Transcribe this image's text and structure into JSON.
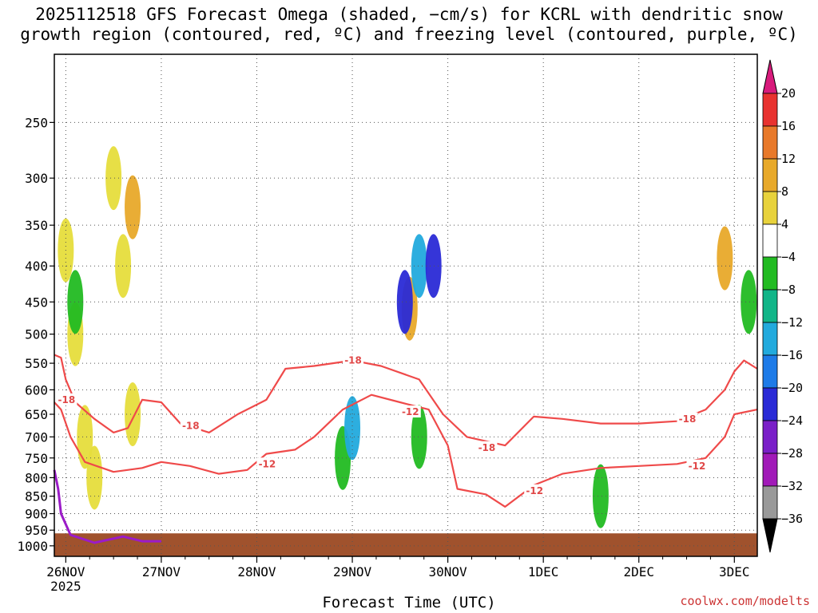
{
  "chart_data": {
    "type": "heatmap",
    "title": "2025112518 GFS Forecast Omega (shaded, −cm/s) for KCRL with dendritic snow\ngrowth region (contoured, red, ºC) and freezing level (contoured, purple, ºC)",
    "xlabel": "Forecast Time (UTC)",
    "ylabel": "",
    "credit": "coolwx.com/modelts",
    "x_ticks": [
      {
        "label": "26NOV",
        "sublabel": "2025",
        "t": 0.0
      },
      {
        "label": "27NOV",
        "sublabel": "",
        "t": 1.0
      },
      {
        "label": "28NOV",
        "sublabel": "",
        "t": 2.0
      },
      {
        "label": "29NOV",
        "sublabel": "",
        "t": 3.0
      },
      {
        "label": "30NOV",
        "sublabel": "",
        "t": 4.0
      },
      {
        "label": "1DEC",
        "sublabel": "",
        "t": 5.0
      },
      {
        "label": "2DEC",
        "sublabel": "",
        "t": 6.0
      },
      {
        "label": "3DEC",
        "sublabel": "",
        "t": 7.0
      }
    ],
    "xlim": [
      -0.12,
      7.24
    ],
    "y_ticks": [
      250,
      300,
      350,
      400,
      450,
      500,
      550,
      600,
      650,
      700,
      750,
      800,
      850,
      900,
      950,
      1000
    ],
    "ylim": [
      1035,
      200
    ],
    "yscale": "log",
    "colorbar": {
      "ticks": [
        "20",
        "16",
        "12",
        "8",
        "4",
        "−4",
        "−8",
        "−12",
        "−16",
        "−20",
        "−24",
        "−28",
        "−32",
        "−36"
      ],
      "colors": [
        "#d81b7c",
        "#e8322f",
        "#e8792a",
        "#e8a92a",
        "#e8d23c",
        "#ffffff",
        "#22bb22",
        "#11b588",
        "#22aadd",
        "#1e7be8",
        "#2a2ad6",
        "#7a1fc8",
        "#a11ab8",
        "#999999",
        "#000000"
      ]
    },
    "shaded_regions": [
      {
        "level": "4",
        "color": "#e6dd3c",
        "cells": [
          [
            0.0,
            380
          ],
          [
            0.1,
            500
          ],
          [
            0.2,
            700
          ],
          [
            0.3,
            800
          ],
          [
            0.5,
            300
          ],
          [
            0.6,
            400
          ],
          [
            0.7,
            650
          ]
        ]
      },
      {
        "level": "8",
        "color": "#e8a92a",
        "cells": [
          [
            0.7,
            330
          ],
          [
            3.6,
            460
          ],
          [
            6.9,
            390
          ]
        ]
      },
      {
        "level": "-4",
        "color": "#22bb22",
        "cells": [
          [
            0.1,
            450
          ],
          [
            2.9,
            750
          ],
          [
            3.7,
            700
          ],
          [
            5.6,
            850
          ],
          [
            7.15,
            450
          ]
        ]
      },
      {
        "level": "-12",
        "color": "#22aadd",
        "cells": [
          [
            3.0,
            680
          ],
          [
            3.7,
            400
          ]
        ]
      },
      {
        "level": "-20",
        "color": "#2a2ad6",
        "cells": [
          [
            3.55,
            450
          ],
          [
            3.85,
            400
          ]
        ]
      }
    ],
    "contours": [
      {
        "name": "-18",
        "color": "#ef4a4a",
        "label_positions": [
          [
            0.0,
            620
          ],
          [
            1.3,
            675
          ],
          [
            3.0,
            545
          ],
          [
            4.4,
            725
          ],
          [
            6.5,
            660
          ]
        ],
        "points": [
          [
            -0.12,
            535
          ],
          [
            -0.05,
            540
          ],
          [
            0.0,
            580
          ],
          [
            0.1,
            625
          ],
          [
            0.3,
            660
          ],
          [
            0.5,
            690
          ],
          [
            0.65,
            680
          ],
          [
            0.8,
            620
          ],
          [
            1.0,
            625
          ],
          [
            1.2,
            670
          ],
          [
            1.5,
            690
          ],
          [
            1.8,
            650
          ],
          [
            2.1,
            620
          ],
          [
            2.3,
            560
          ],
          [
            2.6,
            555
          ],
          [
            3.0,
            545
          ],
          [
            3.3,
            555
          ],
          [
            3.7,
            580
          ],
          [
            3.95,
            650
          ],
          [
            4.2,
            700
          ],
          [
            4.6,
            720
          ],
          [
            4.9,
            655
          ],
          [
            5.2,
            660
          ],
          [
            5.6,
            670
          ],
          [
            6.0,
            670
          ],
          [
            6.4,
            665
          ],
          [
            6.7,
            640
          ],
          [
            6.9,
            600
          ],
          [
            7.0,
            565
          ],
          [
            7.1,
            545
          ],
          [
            7.24,
            560
          ]
        ]
      },
      {
        "name": "-12",
        "color": "#ef4a4a",
        "label_positions": [
          [
            2.1,
            765
          ],
          [
            3.6,
            645
          ],
          [
            4.9,
            835
          ],
          [
            6.6,
            770
          ]
        ],
        "points": [
          [
            -0.12,
            625
          ],
          [
            -0.05,
            640
          ],
          [
            0.05,
            700
          ],
          [
            0.2,
            760
          ],
          [
            0.5,
            785
          ],
          [
            0.8,
            775
          ],
          [
            1.0,
            760
          ],
          [
            1.3,
            770
          ],
          [
            1.6,
            790
          ],
          [
            1.9,
            780
          ],
          [
            2.1,
            740
          ],
          [
            2.4,
            730
          ],
          [
            2.6,
            700
          ],
          [
            2.9,
            640
          ],
          [
            3.2,
            610
          ],
          [
            3.5,
            625
          ],
          [
            3.8,
            640
          ],
          [
            4.0,
            720
          ],
          [
            4.1,
            830
          ],
          [
            4.4,
            845
          ],
          [
            4.6,
            880
          ],
          [
            4.9,
            820
          ],
          [
            5.2,
            790
          ],
          [
            5.6,
            775
          ],
          [
            6.0,
            770
          ],
          [
            6.4,
            765
          ],
          [
            6.7,
            750
          ],
          [
            6.9,
            700
          ],
          [
            7.0,
            650
          ],
          [
            7.24,
            640
          ]
        ]
      },
      {
        "name": "0",
        "color": "#9b1bc8",
        "label_positions": [],
        "points": [
          [
            -0.12,
            780
          ],
          [
            -0.08,
            830
          ],
          [
            -0.05,
            900
          ],
          [
            0.05,
            965
          ],
          [
            0.3,
            990
          ],
          [
            0.6,
            970
          ],
          [
            0.8,
            985
          ],
          [
            1.0,
            985
          ]
        ]
      }
    ]
  }
}
